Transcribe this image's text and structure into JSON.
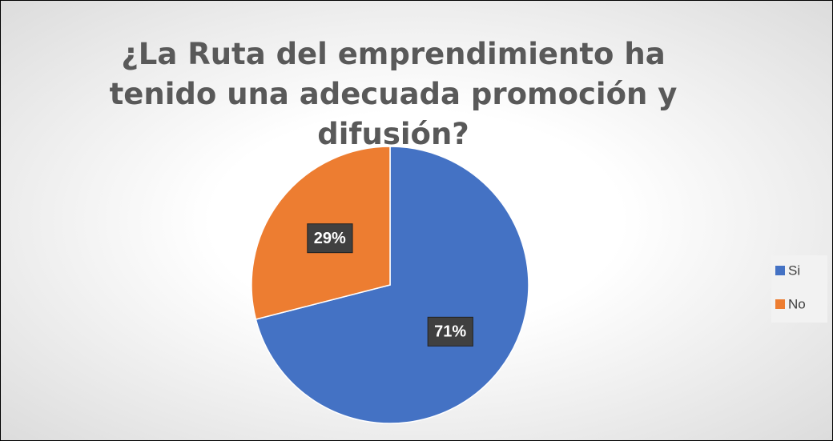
{
  "chart_data": {
    "type": "pie",
    "title": "¿La Ruta del emprendimiento ha tenido una adecuada promoción y difusión?",
    "categories": [
      "Si",
      "No"
    ],
    "values": [
      71,
      29
    ],
    "value_labels": [
      "71%",
      "29%"
    ],
    "colors": [
      "#4472c4",
      "#ed7d31"
    ],
    "legend": "right"
  }
}
